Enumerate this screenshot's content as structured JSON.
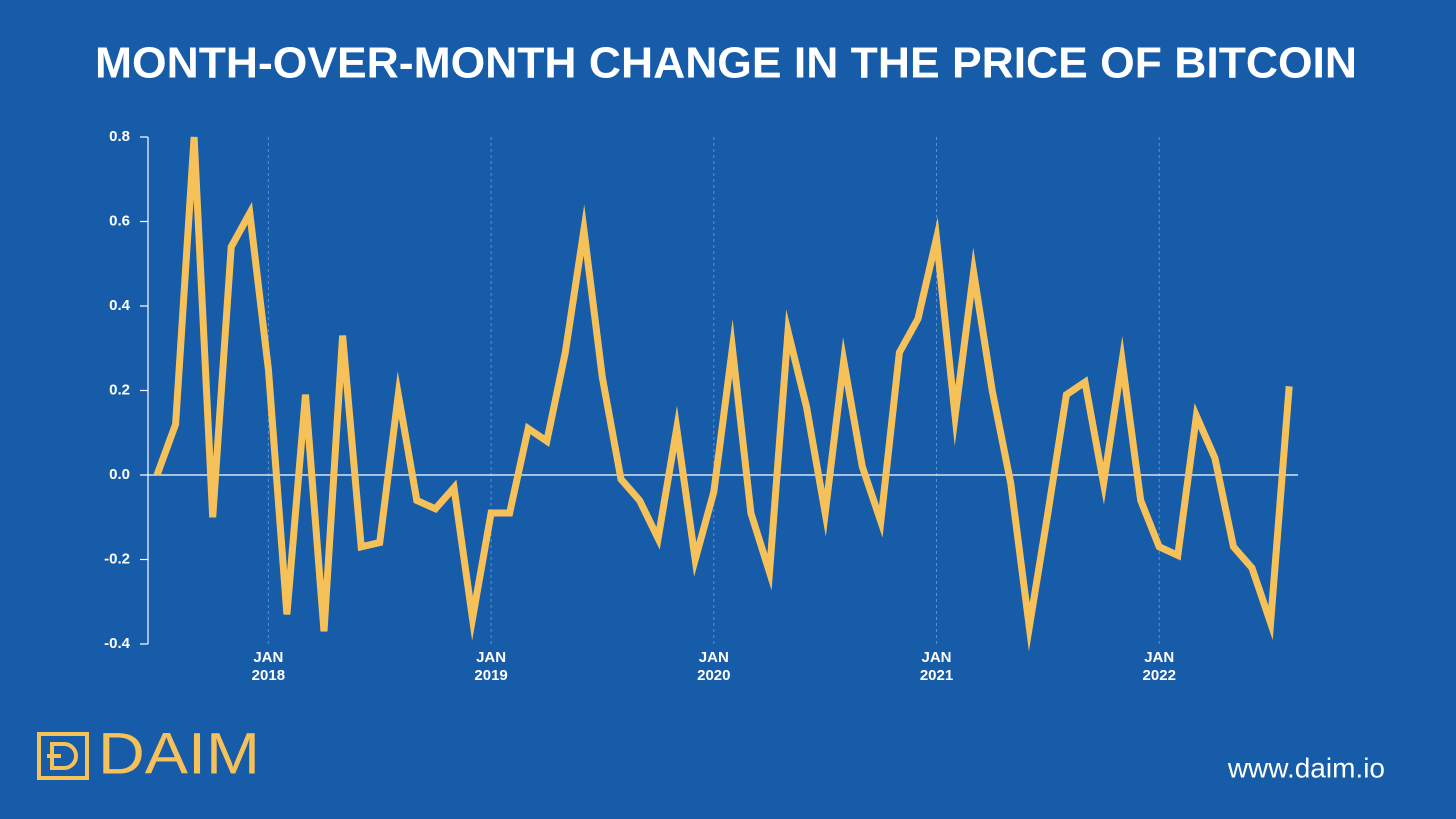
{
  "chart_data": {
    "type": "line",
    "title": "MONTH-OVER-MONTH CHANGE IN THE PRICE OF BITCOIN",
    "categories": [
      null,
      null,
      null,
      null,
      null,
      null,
      "JAN 2018",
      null,
      null,
      null,
      null,
      null,
      null,
      null,
      null,
      null,
      null,
      null,
      "JAN 2019",
      null,
      null,
      null,
      null,
      null,
      null,
      null,
      null,
      null,
      null,
      null,
      "JAN 2020",
      null,
      null,
      null,
      null,
      null,
      null,
      null,
      null,
      null,
      null,
      null,
      "JAN 2021",
      null,
      null,
      null,
      null,
      null,
      null,
      null,
      null,
      null,
      null,
      null,
      "JAN 2022",
      null,
      null,
      null,
      null,
      null,
      null,
      null
    ],
    "values": [
      0.0,
      0.12,
      0.8,
      -0.1,
      0.54,
      0.62,
      0.25,
      -0.33,
      0.19,
      -0.37,
      0.33,
      -0.17,
      -0.16,
      0.19,
      -0.06,
      -0.08,
      -0.03,
      -0.34,
      -0.09,
      -0.09,
      0.11,
      0.08,
      0.29,
      0.58,
      0.23,
      -0.01,
      -0.06,
      -0.15,
      0.11,
      -0.2,
      -0.04,
      0.3,
      -0.09,
      -0.23,
      0.34,
      0.16,
      -0.09,
      0.27,
      0.02,
      -0.11,
      0.29,
      0.37,
      0.56,
      0.14,
      0.48,
      0.2,
      -0.02,
      -0.36,
      -0.09,
      0.19,
      0.22,
      -0.02,
      0.27,
      -0.06,
      -0.17,
      -0.19,
      0.14,
      0.04,
      -0.17,
      -0.22,
      -0.35,
      0.21
    ],
    "color": "#f7c15a",
    "ylim": [
      -0.4,
      0.8
    ],
    "yticks": [
      -0.4,
      -0.2,
      {
        "value": 0,
        "label": "0.0"
      },
      0.2,
      0.4,
      0.6,
      0.8
    ],
    "grid": true
  },
  "brand": {
    "logo": "DAIM",
    "url": "www.daim.io"
  }
}
